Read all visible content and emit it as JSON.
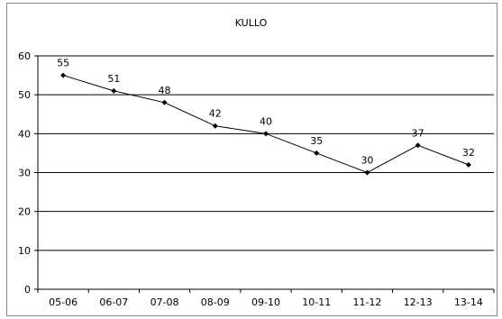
{
  "chart_data": {
    "type": "line",
    "title": "KULLO",
    "xlabel": "",
    "ylabel": "",
    "categories": [
      "05-06",
      "06-07",
      "07-08",
      "08-09",
      "09-10",
      "10-11",
      "11-12",
      "12-13",
      "13-14"
    ],
    "series": [
      {
        "values": [
          55,
          51,
          48,
          42,
          40,
          35,
          30,
          37,
          32
        ]
      }
    ],
    "ylim": [
      0,
      60
    ],
    "yticks": [
      0,
      10,
      20,
      30,
      40,
      50,
      60
    ],
    "grid": true,
    "legend": "none",
    "colors": {
      "line": "#000000",
      "grid": "#000000",
      "axis": "#000000"
    }
  }
}
